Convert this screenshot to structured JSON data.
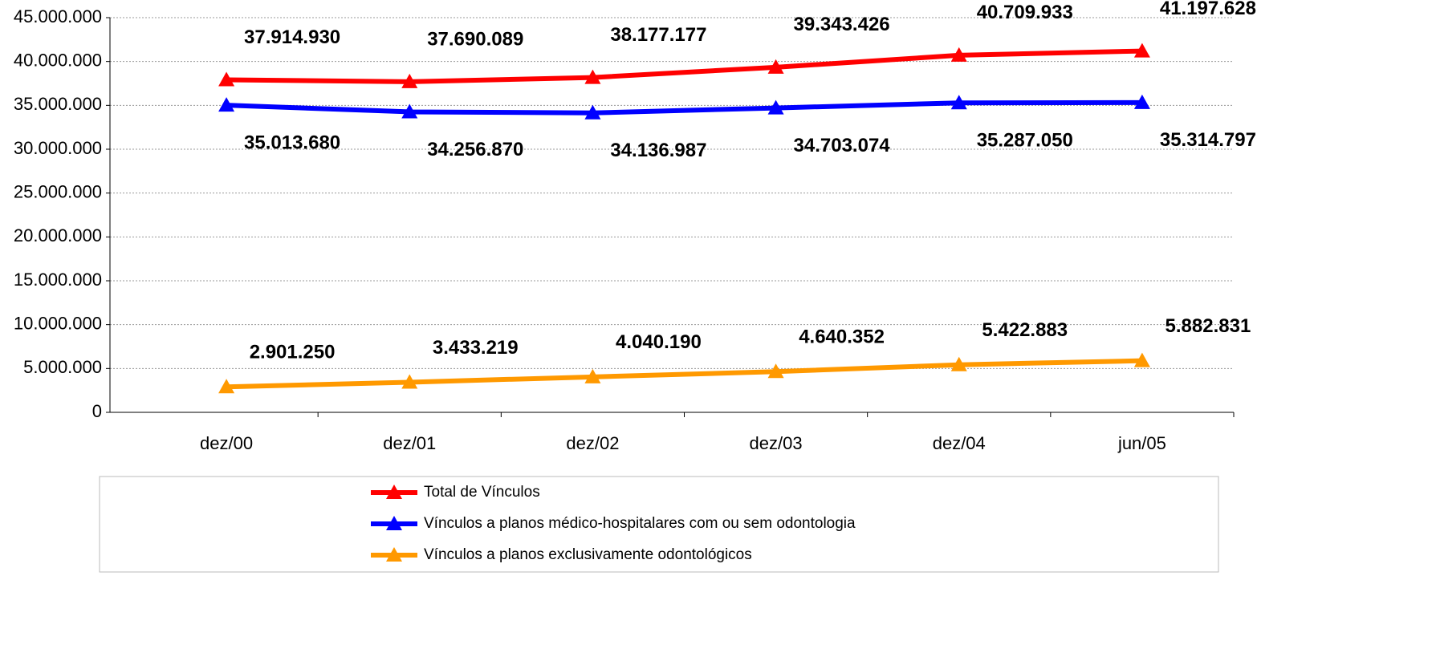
{
  "chart_data": {
    "type": "line",
    "categories": [
      "dez/00",
      "dez/01",
      "dez/02",
      "dez/03",
      "dez/04",
      "jun/05"
    ],
    "series": [
      {
        "name": "Total de Vínculos",
        "color": "#ff0000",
        "values": [
          37914930,
          37690089,
          38177177,
          39343426,
          40709933,
          41197628
        ],
        "value_labels": [
          "37.914.930",
          "37.690.089",
          "38.177.177",
          "39.343.426",
          "40.709.933",
          "41.197.628"
        ]
      },
      {
        "name": "Vínculos a planos médico-hospitalares com ou sem odontologia",
        "color": "#0000ff",
        "values": [
          35013680,
          34256870,
          34136987,
          34703074,
          35287050,
          35314797
        ],
        "value_labels": [
          "35.013.680",
          "34.256.870",
          "34.136.987",
          "34.703.074",
          "35.287.050",
          "35.314.797"
        ]
      },
      {
        "name": "Vínculos a planos exclusivamente odontológicos",
        "color": "#ff9900",
        "values": [
          2901250,
          3433219,
          4040190,
          4640352,
          5422883,
          5882831
        ],
        "value_labels": [
          "2.901.250",
          "3.433.219",
          "4.040.190",
          "4.640.352",
          "5.422.883",
          "5.882.831"
        ]
      }
    ],
    "ylim": [
      0,
      45000000
    ],
    "yticks": [
      0,
      {
        "value": 5000000,
        "label": "5.000.000"
      },
      {
        "value": 10000000,
        "label": "10.000.000"
      },
      {
        "value": 15000000,
        "label": "15.000.000"
      },
      {
        "value": 20000000,
        "label": "20.000.000"
      },
      {
        "value": 25000000,
        "label": "25.000.000"
      },
      {
        "value": 30000000,
        "label": "30.000.000"
      },
      {
        "value": 35000000,
        "label": "35.000.000"
      },
      {
        "value": 40000000,
        "label": "40.000.000"
      },
      {
        "value": 45000000,
        "label": "45.000.000"
      }
    ],
    "grid": true,
    "legend": "bottom"
  }
}
